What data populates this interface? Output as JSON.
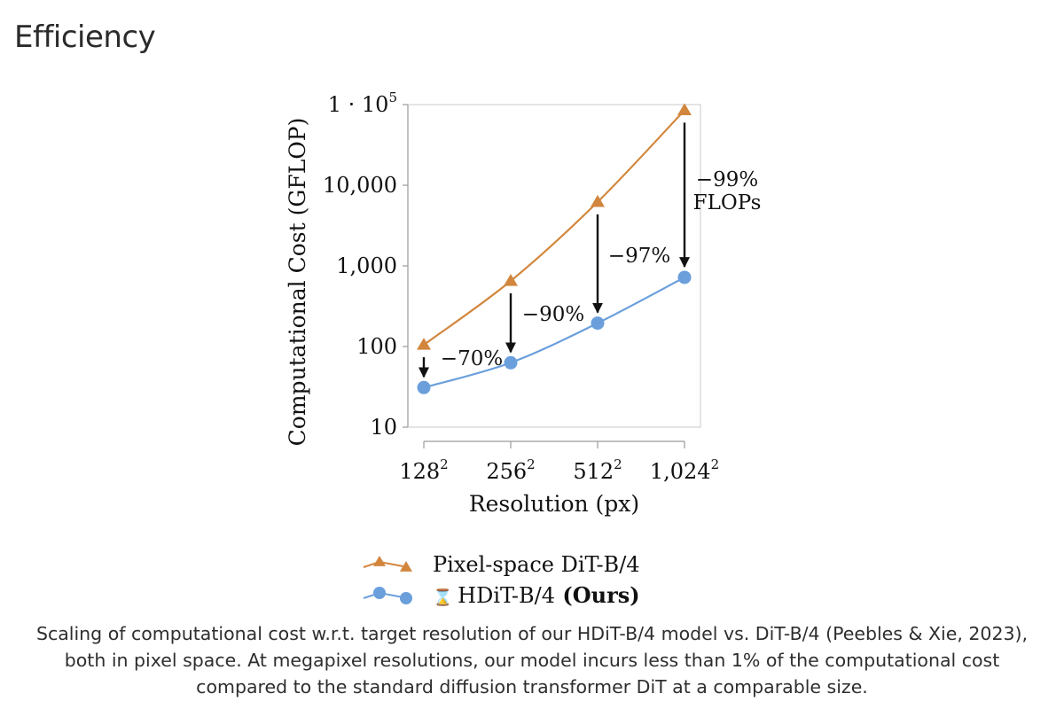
{
  "page": {
    "title": "Efficiency",
    "caption": "Scaling of computational cost w.r.t. target resolution of our HDiT-B/4 model vs. DiT-B/4 (Peebles & Xie, 2023), both in pixel space. At megapixel resolutions, our model incurs less than 1% of the computational cost compared to the standard diffusion transformer DiT at a comparable size."
  },
  "colors": {
    "pixel_dit": "#d2863d",
    "hdit": "#6a9fdc",
    "axis": "#9a9a9a",
    "arrow": "#111111"
  },
  "chart_data": {
    "type": "line",
    "title": "",
    "xlabel": "Resolution (px)",
    "ylabel": "Computational Cost (GFLOP)",
    "yscale": "log",
    "ylim": [
      10,
      100000
    ],
    "categories": [
      "128",
      "256",
      "512",
      "1,024"
    ],
    "category_exponent": "2",
    "y_ticks": [
      {
        "value": 10,
        "label": "10"
      },
      {
        "value": 100,
        "label": "100"
      },
      {
        "value": 1000,
        "label": "1,000"
      },
      {
        "value": 10000,
        "label": "10,000"
      },
      {
        "value": 100000,
        "label": "1 · 10",
        "exponent": "5"
      }
    ],
    "series": [
      {
        "name": "Pixel-space DiT-B/4",
        "marker": "triangle",
        "values": [
          105,
          650,
          6200,
          85000
        ]
      },
      {
        "name": "HDiT-B/4",
        "name_suffix": "(Ours)",
        "icon": "⌛",
        "marker": "circle",
        "values": [
          31,
          63,
          195,
          720
        ]
      }
    ],
    "annotations": [
      {
        "category_index": 0,
        "label": "−70%"
      },
      {
        "category_index": 1,
        "label": "−90%"
      },
      {
        "category_index": 2,
        "label": "−97%"
      },
      {
        "category_index": 3,
        "label": "−99%",
        "label_line2": "FLOPs"
      }
    ],
    "legend_position": "bottom"
  }
}
